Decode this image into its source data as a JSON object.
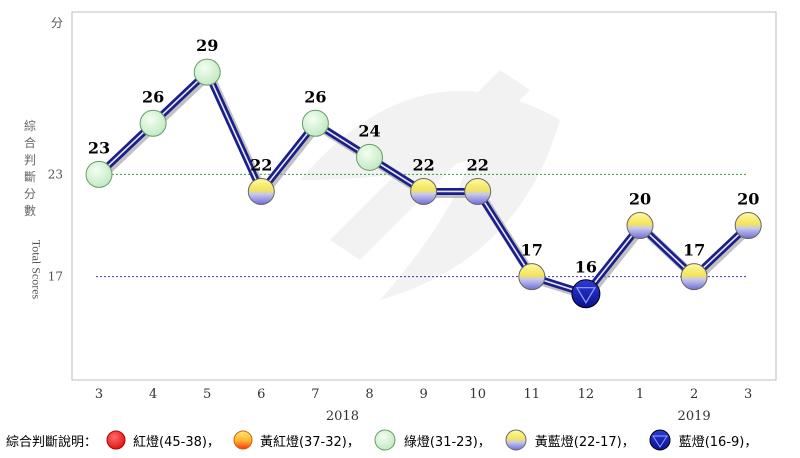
{
  "chart_data": {
    "type": "line",
    "ylabel_cn": "綜合判斷分數",
    "ylabel_en": "Total Scores",
    "y_unit": "分",
    "ylim": [
      9,
      33
    ],
    "reference_lines": [
      23,
      17
    ],
    "categories": [
      "3",
      "4",
      "5",
      "6",
      "7",
      "8",
      "9",
      "10",
      "11",
      "12",
      "1",
      "2",
      "3"
    ],
    "year_labels": [
      {
        "text": "2018",
        "under_index": 4.5
      },
      {
        "text": "2019",
        "under_index": 11
      }
    ],
    "values": [
      23,
      26,
      29,
      22,
      26,
      24,
      22,
      22,
      17,
      16,
      20,
      17,
      20
    ],
    "point_colors": [
      "green",
      "green",
      "green",
      "yellow-blue",
      "green",
      "green",
      "yellow-blue",
      "yellow-blue",
      "yellow-blue",
      "blue",
      "yellow-blue",
      "yellow-blue",
      "yellow-blue"
    ],
    "legend_title": "綜合判斷說明：",
    "legend": [
      {
        "key": "red",
        "label": "紅燈(45-38)，"
      },
      {
        "key": "yellow-red",
        "label": "黃紅燈(37-32)，"
      },
      {
        "key": "green",
        "label": "綠燈(31-23)，"
      },
      {
        "key": "yellow-blue",
        "label": "黃藍燈(22-17)，"
      },
      {
        "key": "blue",
        "label": "藍燈(16-9)，"
      }
    ]
  }
}
